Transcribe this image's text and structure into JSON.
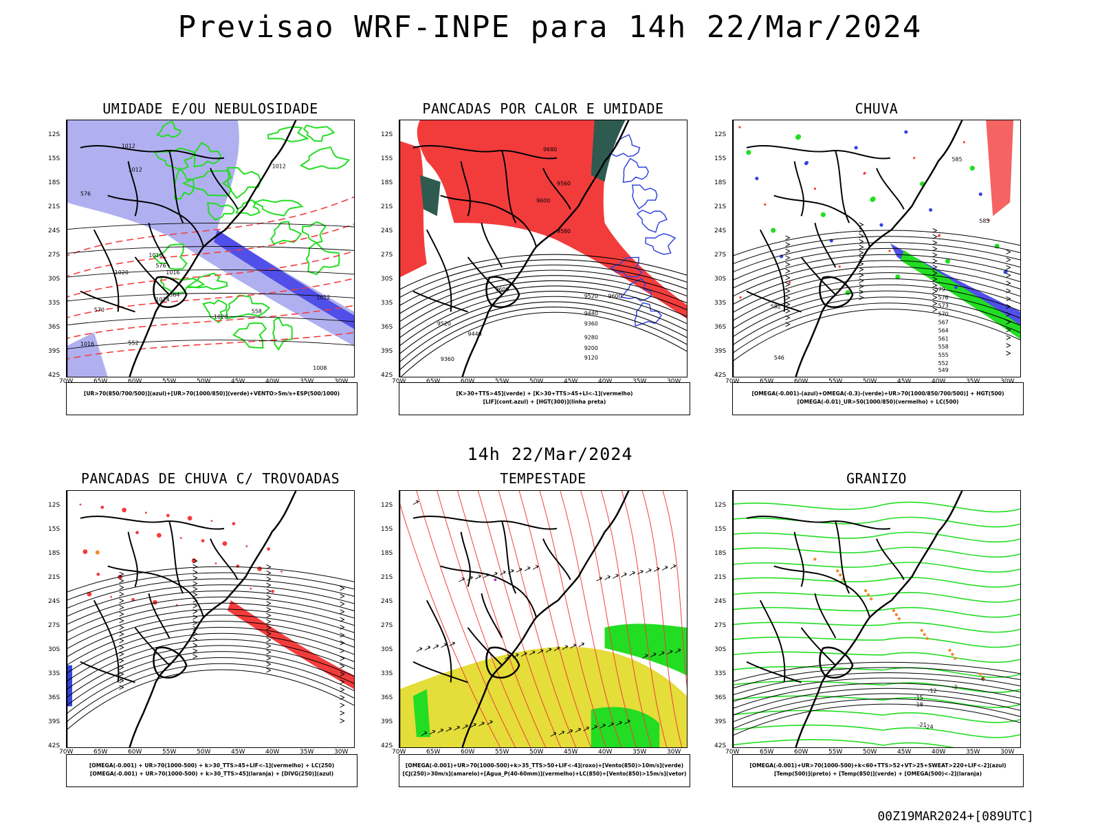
{
  "title": "Previsao WRF-INPE  para 14h 22/Mar/2024",
  "mid_date": "14h 22/Mar/2024",
  "footer": "00Z19MAR2024+[089UTC]",
  "axes": {
    "lat_labels": [
      "12S",
      "15S",
      "18S",
      "21S",
      "24S",
      "27S",
      "30S",
      "33S",
      "36S",
      "39S",
      "42S"
    ],
    "lon_labels": [
      "70W",
      "65W",
      "60W",
      "55W",
      "50W",
      "45W",
      "40W",
      "35W",
      "30W"
    ]
  },
  "colors": {
    "blue_fill": "#b0b0f0",
    "blue_dark": "#5050e8",
    "green": "#22dd22",
    "red": "#f23c3c",
    "dark_teal": "#2f5a4f",
    "yellow": "#e4dd3a",
    "orange": "#f08a2a"
  },
  "panels": [
    {
      "title": "UMIDADE E/OU NEBULOSIDADE",
      "legend": [
        "[UR>70(850/700/500)](azul)+[UR>70(1000/850)](verde)+VENTO>5m/s+ESP(500/1000)"
      ]
    },
    {
      "title": "PANCADAS POR CALOR E UMIDADE",
      "legend": [
        "[K>30+TTS>45](verde) + [K>30+TTS>45+LI<-1](vermelho)",
        "[LIF](cont.azul) + [HGT(300)](linha preta)"
      ]
    },
    {
      "title": "CHUVA",
      "legend": [
        "[OMEGA(-0.001)-(azul)+OMEGA(-0.3)-(verde)+UR>70(1000/850/700/500)] + HGT(500)",
        "[OMEGA(-0.01)_UR>50(1000/850)(vermelho) + LC(500)"
      ]
    },
    {
      "title": "PANCADAS DE CHUVA C/ TROVOADAS",
      "legend": [
        "[OMEGA(-0.001) + UR>70(1000-500) + k>30_TTS>45+LIF<-1](vermelho) + LC(250)",
        "[OMEGA(-0.001) + UR>70(1000-500) + k>30_TTS>45](laranja) + [DIVG(250)](azul)"
      ]
    },
    {
      "title": "TEMPESTADE",
      "legend": [
        "[OMEGA(-0.001)+UR>70(1000-500)+k>35_TTS>50+LIF<-4](roxo)+[Vento(850)>10m/s](verde)",
        "[CJ(250)>30m/s](amarelo)+[Agua_P(40-60mm)](vermelho)+LC(850)+[Vento(850)>15m/s](vetor)"
      ]
    },
    {
      "title": "GRANIZO",
      "legend": [
        "[OMEGA(-0.001)+UR>70(1000-500)+k<60+TTS>52+VT>25+SWEAT>220+LIF<-2](azul)",
        "[Temp(500)](preto) + [Temp(850)](verde) + [OMEGA(500)<-2](laranja)"
      ]
    }
  ],
  "contour_labels": {
    "p1": [
      "1012",
      "1012",
      "1012",
      "1016",
      "1016",
      "1020",
      "1024",
      "1020",
      "1016",
      "1012",
      "1008",
      "576",
      "570",
      "564",
      "558",
      "552",
      "576"
    ],
    "p2": [
      "9680",
      "9600",
      "9560",
      "9580",
      "9600",
      "9520",
      "9440",
      "9360",
      "9280",
      "9200",
      "9120",
      "9600",
      "9520",
      "9440",
      "9360"
    ],
    "p3": [
      "585",
      "585",
      "582",
      "579",
      "576",
      "573",
      "570",
      "567",
      "564",
      "561",
      "558",
      "555",
      "552",
      "549",
      "546"
    ],
    "p6": [
      "-12",
      "-15",
      "-18",
      "-21",
      "-24",
      "-3",
      "-6"
    ]
  }
}
